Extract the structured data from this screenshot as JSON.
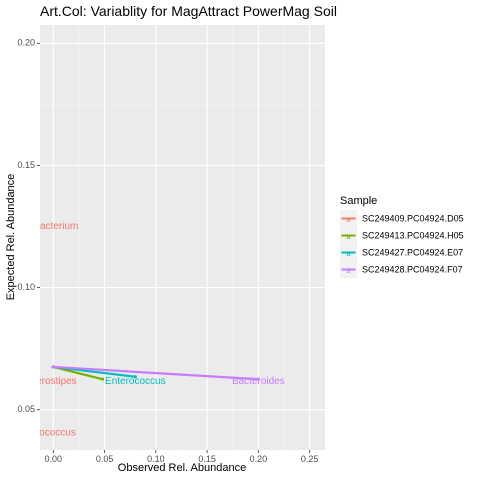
{
  "chart_data": {
    "type": "line",
    "title": "Art.Col: Variablity for MagAttract PowerMag Soil",
    "xlabel": "Observed Rel. Abundance",
    "ylabel": "Expected Rel. Abundance",
    "xlim": [
      -0.013,
      0.265
    ],
    "ylim": [
      0.0335,
      0.2075
    ],
    "x_ticks": [
      0.0,
      0.05,
      0.1,
      0.15,
      0.2,
      0.25
    ],
    "x_tick_labels": [
      "0.00",
      "0.05",
      "0.10",
      "0.15",
      "0.20",
      "0.25"
    ],
    "y_ticks": [
      0.05,
      0.1,
      0.15,
      0.2
    ],
    "y_tick_labels": [
      "0.05",
      "0.10",
      "0.15",
      "0.20"
    ],
    "grid": true,
    "legend": {
      "title": "Sample",
      "placement": "right"
    },
    "series": [
      {
        "name": "SC249409.PC04924.D05",
        "color": "#F8766D",
        "points": [
          [
            0.0,
            0.0675
          ],
          [
            0.0,
            0.0675
          ]
        ]
      },
      {
        "name": "SC249413.PC04924.H05",
        "color": "#7CAE00",
        "points": [
          [
            0.0,
            0.0675
          ],
          [
            0.048,
            0.0625
          ]
        ]
      },
      {
        "name": "SC249427.PC04924.E07",
        "color": "#00BFC4",
        "points": [
          [
            0.0,
            0.0675
          ],
          [
            0.08,
            0.0635
          ]
        ]
      },
      {
        "name": "SC249428.PC04924.F07",
        "color": "#C77CFF",
        "points": [
          [
            0.0,
            0.0675
          ],
          [
            0.2,
            0.0625
          ]
        ]
      }
    ],
    "annotations": [
      {
        "text": "bacterium",
        "x": 0.003,
        "y": 0.125,
        "color": "#F8766D",
        "anchor": "middle"
      },
      {
        "text": "erostipes",
        "x": 0.003,
        "y": 0.0615,
        "color": "#F8766D",
        "anchor": "middle"
      },
      {
        "text": "iococcus",
        "x": 0.003,
        "y": 0.0405,
        "color": "#F8766D",
        "anchor": "middle"
      },
      {
        "text": "Enterococcus",
        "x": 0.08,
        "y": 0.0615,
        "color": "#00BFC4",
        "anchor": "middle"
      },
      {
        "text": "Bacteroides",
        "x": 0.2,
        "y": 0.0615,
        "color": "#C77CFF",
        "anchor": "middle"
      }
    ]
  }
}
